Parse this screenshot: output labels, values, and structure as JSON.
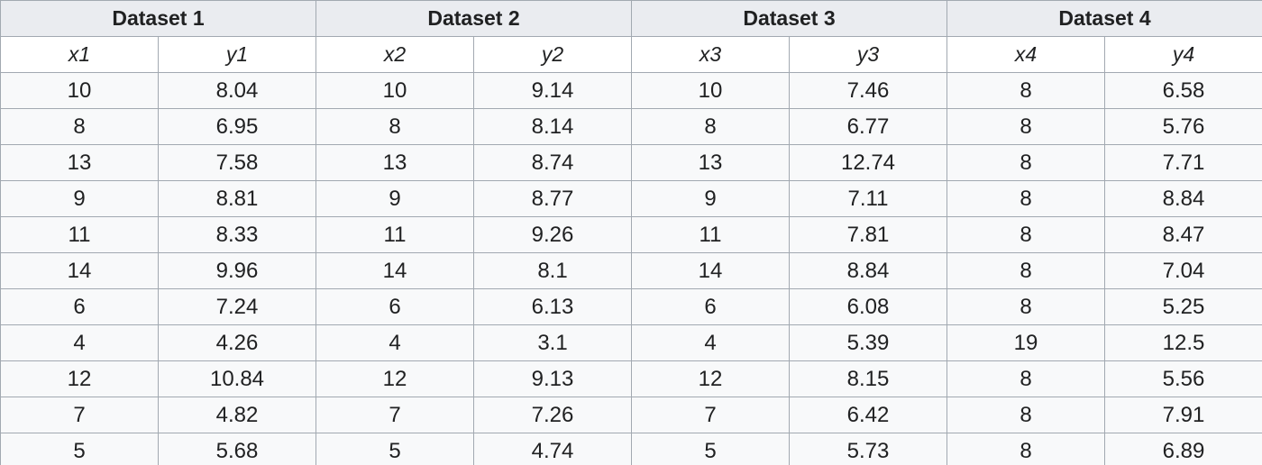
{
  "datasets": [
    {
      "title": "Dataset 1",
      "x_label": "x1",
      "y_label": "y1",
      "x": [
        "10",
        "8",
        "13",
        "9",
        "11",
        "14",
        "6",
        "4",
        "12",
        "7",
        "5"
      ],
      "y": [
        "8.04",
        "6.95",
        "7.58",
        "8.81",
        "8.33",
        "9.96",
        "7.24",
        "4.26",
        "10.84",
        "4.82",
        "5.68"
      ]
    },
    {
      "title": "Dataset 2",
      "x_label": "x2",
      "y_label": "y2",
      "x": [
        "10",
        "8",
        "13",
        "9",
        "11",
        "14",
        "6",
        "4",
        "12",
        "7",
        "5"
      ],
      "y": [
        "9.14",
        "8.14",
        "8.74",
        "8.77",
        "9.26",
        "8.1",
        "6.13",
        "3.1",
        "9.13",
        "7.26",
        "4.74"
      ]
    },
    {
      "title": "Dataset 3",
      "x_label": "x3",
      "y_label": "y3",
      "x": [
        "10",
        "8",
        "13",
        "9",
        "11",
        "14",
        "6",
        "4",
        "12",
        "7",
        "5"
      ],
      "y": [
        "7.46",
        "6.77",
        "12.74",
        "7.11",
        "7.81",
        "8.84",
        "6.08",
        "5.39",
        "8.15",
        "6.42",
        "5.73"
      ]
    },
    {
      "title": "Dataset 4",
      "x_label": "x4",
      "y_label": "y4",
      "x": [
        "8",
        "8",
        "8",
        "8",
        "8",
        "8",
        "8",
        "19",
        "8",
        "8",
        "8"
      ],
      "y": [
        "6.58",
        "5.76",
        "7.71",
        "8.84",
        "8.47",
        "7.04",
        "5.25",
        "12.5",
        "5.56",
        "7.91",
        "6.89"
      ]
    }
  ]
}
